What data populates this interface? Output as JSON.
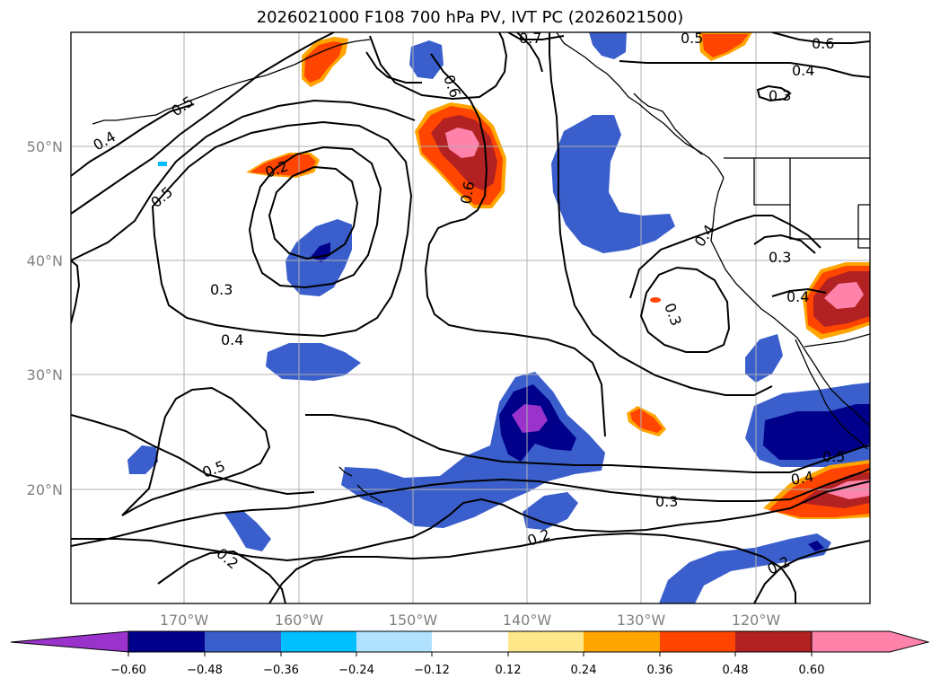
{
  "title": "2026021000 F108 700 hPa PV, IVT PC (2026021500)",
  "colors": {
    "neg_060": "#9933cc",
    "neg_048": "#00008b",
    "neg_036": "#3a5fcd",
    "neg_024": "#00bfff",
    "neg_012": "#b0e2ff",
    "neutral": "#ffffff",
    "pos_012": "#ffe88a",
    "pos_024": "#ffa500",
    "pos_036": "#ff4500",
    "pos_048": "#b22222",
    "pos_060": "#ff82ab",
    "contour": "#000000",
    "grid": "#b0b0b0",
    "coast": "#000000"
  },
  "chart_data": {
    "type": "map-contour",
    "title": "2026021000 F108 700 hPa PV, IVT PC (2026021500)",
    "lon_range": [
      -180,
      -110
    ],
    "lat_range": [
      10,
      60
    ],
    "lon_ticks": [
      "170°W",
      "160°W",
      "150°W",
      "140°W",
      "130°W",
      "120°W"
    ],
    "lat_ticks": [
      "50°N",
      "40°N",
      "30°N",
      "20°N"
    ],
    "fill_field": "IVT PC",
    "contour_field": "700 hPa PV",
    "colorbar_levels": [
      "−0.60",
      "−0.48",
      "−0.36",
      "−0.24",
      "−0.12",
      "0.12",
      "0.24",
      "0.36",
      "0.48",
      "0.60"
    ],
    "contour_labels": [
      "0.5",
      "0.4",
      "0.2",
      "0.5",
      "0.3",
      "0.4",
      "0.6",
      "0.6",
      "0.7",
      "0.5",
      "0.6",
      "0.4",
      "0.3",
      "0.4",
      "0.3",
      "0.3",
      "0.4",
      "0.5",
      "0.2",
      "0.2",
      "0.3",
      "0.2",
      "0.4",
      "0.5"
    ]
  }
}
